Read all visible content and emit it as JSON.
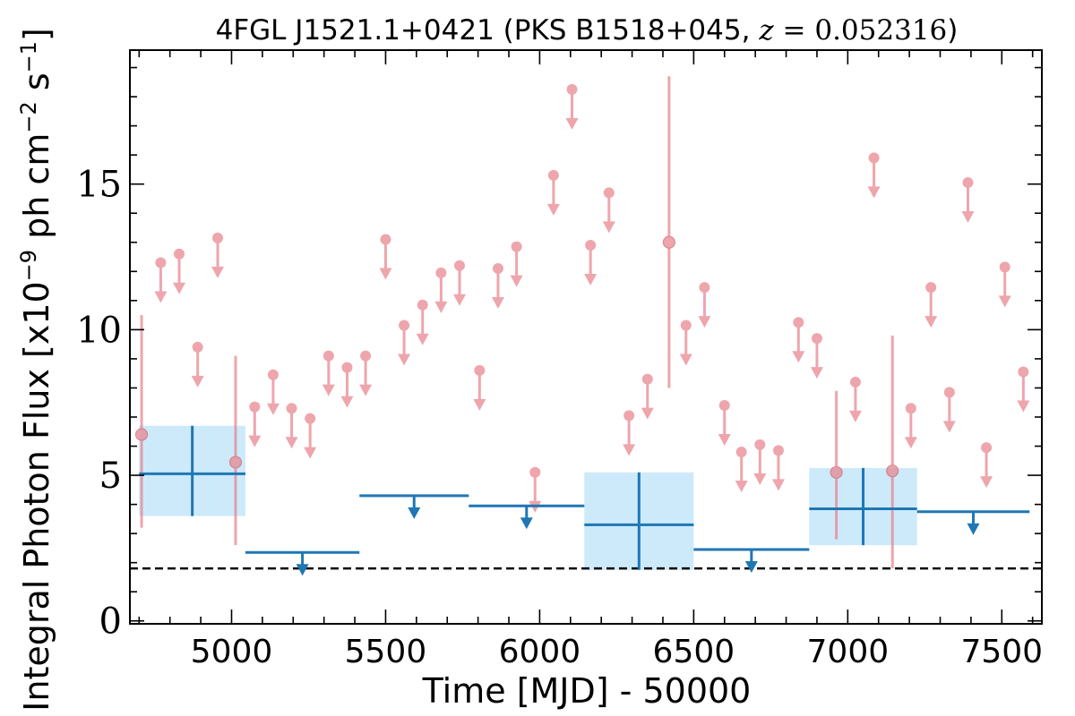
{
  "chart_data": {
    "type": "scatter",
    "title": {
      "prefix": "4FGL J1521.1+0421 (PKS B1518+045, ",
      "zvar": "z",
      "equals": " = ",
      "zval": "0.052316",
      "suffix": ")"
    },
    "xlabel": "Time [MJD] - 50000",
    "ylabel": "Integral Photon Flux [x10^-9 ph cm^-2 s^-1]",
    "ylabel_parts": {
      "a": "Integral Photon Flux [x10",
      "exp1": "−9",
      "b": " ph cm",
      "exp2": "−2",
      "c": " s",
      "exp3": "−1",
      "d": "]"
    },
    "xlim": [
      4670,
      7630
    ],
    "ylim": [
      -0.1,
      19.6
    ],
    "xticks": [
      5000,
      5500,
      6000,
      6500,
      7000,
      7500
    ],
    "xtick_labels": [
      "5000",
      "5500",
      "6000",
      "6500",
      "7000",
      "7500"
    ],
    "yticks": [
      0,
      5,
      10,
      15
    ],
    "ytick_labels": [
      "0",
      "5",
      "10",
      "15"
    ],
    "reference_level": 1.8,
    "colors": {
      "fine": "#e8808a",
      "coarse": "#1f77b4",
      "coarse_band": "#cdeafb",
      "reference": "#000000"
    },
    "series": [
      {
        "bin_width": 92,
        "points": [
          {
            "x": 4708,
            "y": 6.4,
            "lo": 3.2,
            "hi": 10.5
          },
          {
            "x": 5013,
            "y": 5.45,
            "lo": 2.6,
            "hi": 9.1
          },
          {
            "x": 6420,
            "y": 13.0,
            "lo": 8.0,
            "hi": 18.7
          },
          {
            "x": 6963,
            "y": 5.1,
            "lo": 2.8,
            "hi": 7.9
          },
          {
            "x": 7145,
            "y": 5.15,
            "lo": 1.8,
            "hi": 9.8
          }
        ],
        "upper_limits": [
          {
            "x": 4770,
            "y": 12.3
          },
          {
            "x": 4830,
            "y": 12.6
          },
          {
            "x": 4890,
            "y": 9.4
          },
          {
            "x": 4955,
            "y": 13.15
          },
          {
            "x": 5075,
            "y": 7.35
          },
          {
            "x": 5135,
            "y": 8.45
          },
          {
            "x": 5195,
            "y": 7.3
          },
          {
            "x": 5255,
            "y": 6.95
          },
          {
            "x": 5315,
            "y": 9.1
          },
          {
            "x": 5375,
            "y": 8.7
          },
          {
            "x": 5435,
            "y": 9.1
          },
          {
            "x": 5500,
            "y": 13.1
          },
          {
            "x": 5560,
            "y": 10.15
          },
          {
            "x": 5620,
            "y": 10.85
          },
          {
            "x": 5680,
            "y": 11.95
          },
          {
            "x": 5740,
            "y": 12.2
          },
          {
            "x": 5805,
            "y": 8.6
          },
          {
            "x": 5865,
            "y": 12.1
          },
          {
            "x": 5925,
            "y": 12.85
          },
          {
            "x": 5985,
            "y": 5.1
          },
          {
            "x": 6045,
            "y": 15.3
          },
          {
            "x": 6105,
            "y": 18.25
          },
          {
            "x": 6165,
            "y": 12.9
          },
          {
            "x": 6225,
            "y": 14.7
          },
          {
            "x": 6290,
            "y": 7.05
          },
          {
            "x": 6350,
            "y": 8.3
          },
          {
            "x": 6475,
            "y": 10.15
          },
          {
            "x": 6535,
            "y": 11.45
          },
          {
            "x": 6600,
            "y": 7.4
          },
          {
            "x": 6655,
            "y": 5.8
          },
          {
            "x": 6715,
            "y": 6.05
          },
          {
            "x": 6775,
            "y": 5.85
          },
          {
            "x": 6840,
            "y": 10.25
          },
          {
            "x": 6900,
            "y": 9.7
          },
          {
            "x": 7025,
            "y": 8.2
          },
          {
            "x": 7085,
            "y": 15.9
          },
          {
            "x": 7205,
            "y": 7.3
          },
          {
            "x": 7270,
            "y": 11.45
          },
          {
            "x": 7330,
            "y": 7.85
          },
          {
            "x": 7390,
            "y": 15.05
          },
          {
            "x": 7450,
            "y": 5.95
          },
          {
            "x": 7510,
            "y": 12.15
          },
          {
            "x": 7570,
            "y": 8.55
          }
        ]
      },
      {
        "bins": [
          {
            "x0": 4700,
            "x1": 5045,
            "y": 5.05,
            "lo": 3.6,
            "hi": 6.7,
            "ul": false
          },
          {
            "x0": 5045,
            "x1": 5415,
            "y": 2.35,
            "ul": true
          },
          {
            "x0": 5415,
            "x1": 5770,
            "y": 4.3,
            "ul": true
          },
          {
            "x0": 5770,
            "x1": 6145,
            "y": 3.95,
            "ul": true
          },
          {
            "x0": 6145,
            "x1": 6500,
            "y": 3.3,
            "lo": 1.75,
            "hi": 5.1,
            "ul": false
          },
          {
            "x0": 6500,
            "x1": 6875,
            "y": 2.45,
            "ul": true
          },
          {
            "x0": 6875,
            "x1": 7225,
            "y": 3.85,
            "lo": 2.6,
            "hi": 5.25,
            "ul": false
          },
          {
            "x0": 7225,
            "x1": 7590,
            "y": 3.75,
            "ul": true
          }
        ]
      }
    ]
  }
}
